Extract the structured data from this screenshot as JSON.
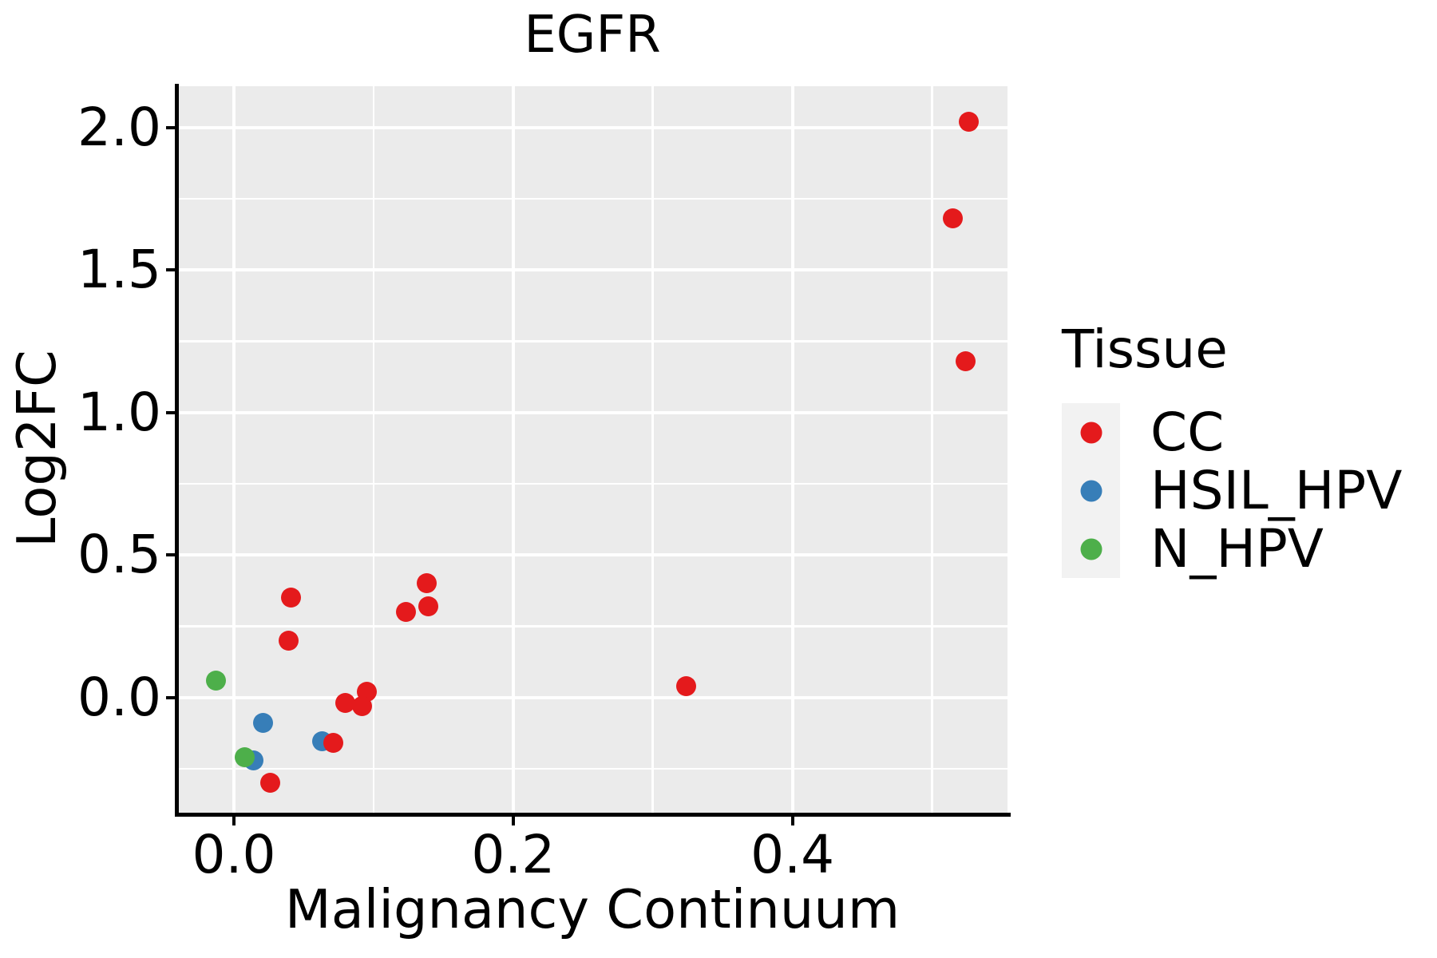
{
  "chart_data": {
    "type": "scatter",
    "title": "EGFR",
    "xlabel": "Malignancy Continuum",
    "ylabel": "Log2FC",
    "xlim": [
      -0.04,
      0.554
    ],
    "ylim": [
      -0.41,
      2.145
    ],
    "grid": true,
    "x_major_ticks": [
      0.0,
      0.2,
      0.4
    ],
    "x_tick_labels": [
      "0.0",
      "0.2",
      "0.4"
    ],
    "x_minor_ticks": [
      0.1,
      0.3,
      0.5
    ],
    "y_major_ticks": [
      0.0,
      0.5,
      1.0,
      1.5,
      2.0
    ],
    "y_tick_labels": [
      "0.0",
      "0.5",
      "1.0",
      "1.5",
      "2.0"
    ],
    "y_minor_ticks": [
      -0.25,
      0.25,
      0.75,
      1.25,
      1.75
    ],
    "legend": {
      "title": "Tissue",
      "position": "right",
      "entries": [
        {
          "label": "CC",
          "color": "#E41A1C"
        },
        {
          "label": "HSIL_HPV",
          "color": "#377EB8"
        },
        {
          "label": "N_HPV",
          "color": "#4DAF4A"
        }
      ]
    },
    "series": [
      {
        "name": "CC",
        "color": "#E41A1C",
        "z": 2,
        "points": [
          [
            0.526,
            2.02
          ],
          [
            0.515,
            1.68
          ],
          [
            0.524,
            1.18
          ],
          [
            0.041,
            0.35
          ],
          [
            0.039,
            0.2
          ],
          [
            0.138,
            0.4
          ],
          [
            0.139,
            0.32
          ],
          [
            0.123,
            0.3
          ],
          [
            0.324,
            0.04
          ],
          [
            0.08,
            -0.02
          ],
          [
            0.095,
            0.02
          ],
          [
            0.092,
            -0.03
          ],
          [
            0.071,
            -0.16
          ],
          [
            0.026,
            -0.3
          ]
        ]
      },
      {
        "name": "HSIL_HPV",
        "color": "#377EB8",
        "z": 1,
        "points": [
          [
            0.021,
            -0.09
          ],
          [
            0.063,
            -0.155
          ],
          [
            0.014,
            -0.22
          ]
        ]
      },
      {
        "name": "N_HPV",
        "color": "#4DAF4A",
        "z": 3,
        "points": [
          [
            -0.013,
            0.058
          ],
          [
            0.008,
            -0.21
          ]
        ]
      }
    ],
    "colors": {
      "panel_bg": "#EBEBEB",
      "gridline": "#FFFFFF",
      "axis": "#000000",
      "legend_key_bg": "#F2F2F2",
      "text": "#000000"
    }
  }
}
